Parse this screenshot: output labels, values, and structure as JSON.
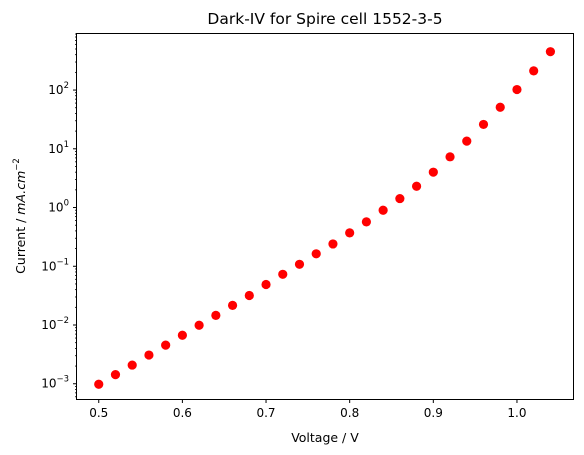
{
  "chart_data": {
    "type": "scatter",
    "title": "Dark-IV for Spire cell 1552-3-5",
    "xlabel": "Voltage / V",
    "ylabel": {
      "prefix": "Current / ",
      "unit_main": "mA.cm",
      "unit_exp": "−2"
    },
    "yscale": "log",
    "xlim": [
      0.474,
      1.067
    ],
    "ylim": [
      0.00055,
      900
    ],
    "grid": false,
    "marker_color": "#ff0000",
    "x_ticks": [
      "0.5",
      "0.6",
      "0.7",
      "0.8",
      "0.9",
      "1.0"
    ],
    "y_ticks": [
      {
        "value": 0.001,
        "base": "10",
        "exp": "−3"
      },
      {
        "value": 0.01,
        "base": "10",
        "exp": "−2"
      },
      {
        "value": 0.1,
        "base": "10",
        "exp": "−1"
      },
      {
        "value": 1,
        "base": "10",
        "exp": "0"
      },
      {
        "value": 10,
        "base": "10",
        "exp": "1"
      },
      {
        "value": 100,
        "base": "10",
        "exp": "2"
      }
    ],
    "series": [
      {
        "x": [
          0.5,
          0.52,
          0.54,
          0.56,
          0.58,
          0.6,
          0.62,
          0.64,
          0.66,
          0.68,
          0.7,
          0.72,
          0.74,
          0.76,
          0.78,
          0.8,
          0.82,
          0.84,
          0.86,
          0.88,
          0.9,
          0.92,
          0.94,
          0.96,
          0.98,
          1.0,
          1.02,
          1.04
        ],
        "y": [
          0.00098,
          0.00143,
          0.00208,
          0.00308,
          0.00455,
          0.0067,
          0.0099,
          0.0146,
          0.0216,
          0.0318,
          0.049,
          0.073,
          0.108,
          0.163,
          0.24,
          0.37,
          0.57,
          0.9,
          1.42,
          2.3,
          4.0,
          7.3,
          13.5,
          26.0,
          51.0,
          102,
          212,
          450
        ]
      }
    ]
  }
}
